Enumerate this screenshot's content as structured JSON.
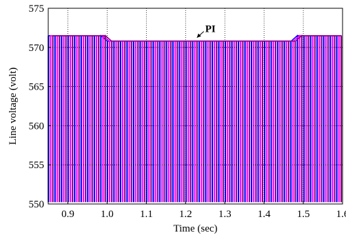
{
  "chart_data": {
    "type": "line",
    "xlabel": "Time (sec)",
    "ylabel": "Line voltage (volt)",
    "xlim": [
      0.85,
      1.6
    ],
    "ylim": [
      550,
      575
    ],
    "x_ticks": [
      "0.9",
      "1.0",
      "1.1",
      "1.2",
      "1.3",
      "1.4",
      "1.5",
      "1.6"
    ],
    "x_tick_values": [
      0.9,
      1.0,
      1.1,
      1.2,
      1.3,
      1.4,
      1.5,
      1.6
    ],
    "y_ticks": [
      "550",
      "555",
      "560",
      "565",
      "570",
      "575"
    ],
    "y_tick_values": [
      550,
      555,
      560,
      565,
      570,
      575
    ],
    "grid": true,
    "annotation": {
      "text": "PI",
      "x": 1.25,
      "y": 572.3
    },
    "series": [
      {
        "color": "#0000ff"
      },
      {
        "color": "#ff00ff"
      },
      {
        "color": "#8b008b"
      }
    ],
    "envelope": [
      {
        "x": 0.85,
        "y_max": 571.5,
        "y_min": 550.3
      },
      {
        "x": 0.995,
        "y_max": 571.5,
        "y_min": 550.3
      },
      {
        "x": 1.0,
        "y_max": 570.8,
        "y_min": 550.3
      },
      {
        "x": 1.47,
        "y_max": 570.8,
        "y_min": 550.3
      },
      {
        "x": 1.48,
        "y_max": 571.5,
        "y_min": 550.3
      },
      {
        "x": 1.6,
        "y_max": 571.5,
        "y_min": 550.3
      }
    ],
    "ripple_period_sec": 0.0167
  }
}
